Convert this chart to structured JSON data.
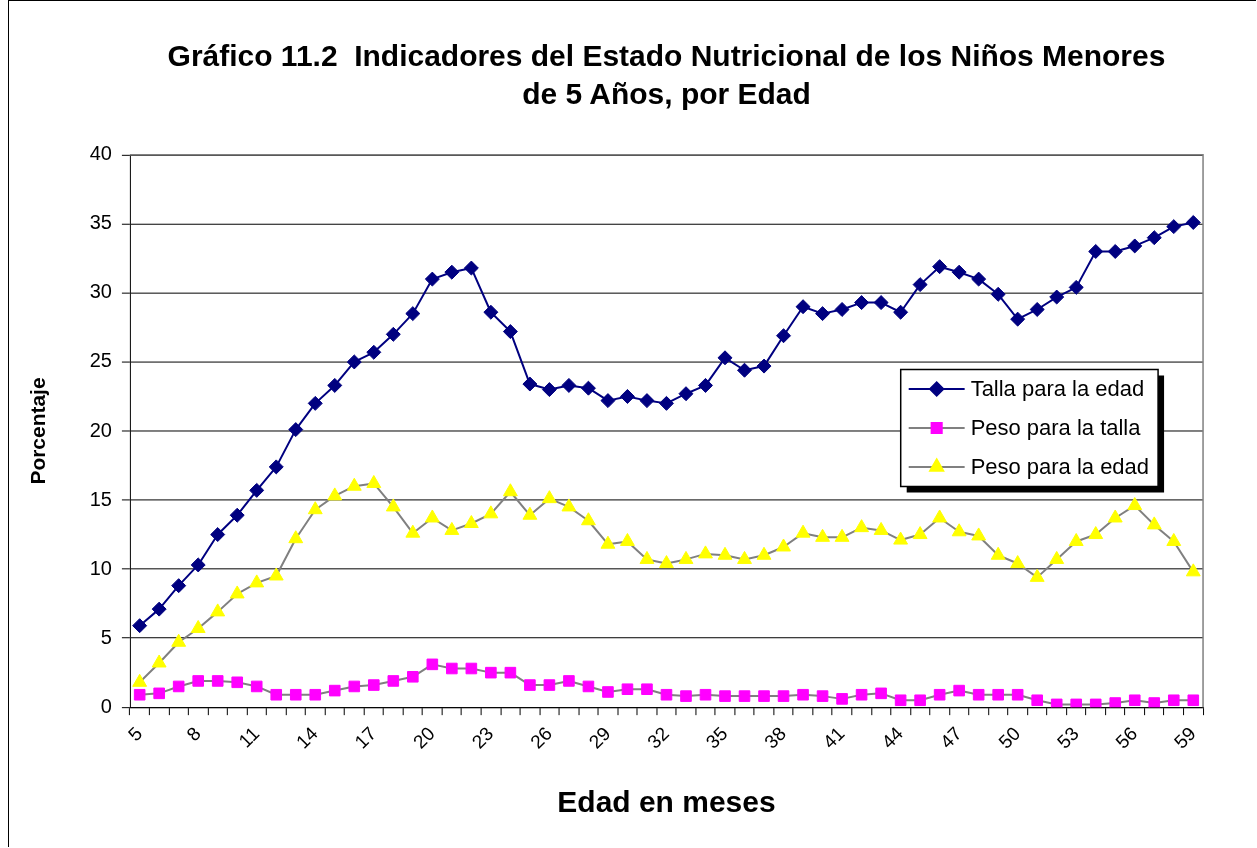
{
  "chart_data": {
    "type": "line",
    "title": "Gráfico 11.2  Indicadores del Estado Nutricional de los Niños Menores de 5 Años, por Edad",
    "xlabel": "Edad en meses",
    "ylabel": "Porcentaje",
    "categories": [
      "5",
      null,
      null,
      "8",
      null,
      null,
      "11",
      null,
      null,
      "14",
      null,
      null,
      "17",
      null,
      null,
      "20",
      null,
      null,
      "23",
      null,
      null,
      "26",
      null,
      null,
      "29",
      null,
      null,
      "32",
      null,
      null,
      "35",
      null,
      null,
      "38",
      null,
      null,
      "41",
      null,
      null,
      "44",
      null,
      null,
      "47",
      null,
      null,
      "50",
      null,
      null,
      "53",
      null,
      null,
      "56",
      null,
      null,
      "59"
    ],
    "series": [
      {
        "name": "Talla para la edad",
        "color": "#000080",
        "marker": "diamond",
        "values": [
          5.9,
          7.1,
          8.8,
          10.3,
          12.5,
          13.9,
          15.7,
          17.4,
          20.1,
          22.0,
          23.3,
          25.0,
          25.7,
          27.0,
          28.5,
          31.0,
          31.5,
          31.8,
          28.6,
          27.2,
          23.4,
          23.0,
          23.3,
          23.1,
          22.2,
          22.5,
          22.2,
          22.0,
          22.7,
          23.3,
          25.3,
          24.4,
          24.7,
          26.9,
          29.0,
          28.5,
          28.8,
          29.3,
          29.3,
          28.6,
          30.6,
          31.9,
          31.5,
          31.0,
          29.9,
          28.1,
          28.8,
          29.7,
          30.4,
          33.0,
          33.0,
          33.4,
          34.0,
          34.8,
          35.1
        ]
      },
      {
        "name": "Peso para la talla",
        "color": "#808080",
        "marker": "square",
        "colors": [
          "#ff00ff",
          "#ff00ff",
          "#ff00ff",
          "#ff00ff",
          "#ff00ff",
          "#ff00ff",
          "#ff00ff",
          "#ff00ff",
          "#ff00ff",
          "#ff00ff",
          "#ff00ff",
          "#ff00ff",
          "#ff00ff",
          "#ff00ff",
          "#ff00ff",
          "#ff00ff",
          "#ff00ff",
          "#ff00ff",
          "#ff00ff",
          "#ff00ff",
          "#ff00ff",
          "#ff00ff",
          "#ff00ff",
          "#ff00ff",
          "#ff00ff",
          "#ff00ff",
          "#ff00ff",
          "#ff00ff",
          "#ff00ff",
          "#ff00ff",
          "#ff00ff",
          "#ff00ff",
          "#ff00ff",
          "#ff00ff",
          "#ff00ff",
          "#ff00ff",
          "#ff00ff",
          "#ff00ff",
          "#ff00ff",
          "#ff00ff",
          "#ff00ff",
          "#ff00ff",
          "#ff00ff",
          "#ff00ff",
          "#ff00ff",
          "#ff00ff",
          "#ff00ff",
          "#ff00ff",
          "#ff00ff",
          "#ff00ff",
          "#ff00ff",
          "#ff00ff",
          "#ff00ff",
          "#ff00ff",
          "#ff00ff"
        ],
        "values": [
          0.9,
          1.0,
          1.5,
          1.9,
          1.9,
          1.8,
          1.5,
          0.9,
          0.9,
          0.9,
          1.2,
          1.5,
          1.6,
          1.9,
          2.2,
          3.1,
          2.8,
          2.8,
          2.5,
          2.5,
          1.6,
          1.6,
          1.9,
          1.5,
          1.1,
          1.3,
          1.3,
          0.9,
          0.8,
          0.9,
          0.8,
          0.8,
          0.8,
          0.8,
          0.9,
          0.8,
          0.6,
          0.9,
          1.0,
          0.5,
          0.5,
          0.9,
          1.2,
          0.9,
          0.9,
          0.9,
          0.5,
          0.2,
          0.2,
          0.2,
          0.3,
          0.5,
          0.3,
          0.5,
          0.5
        ]
      },
      {
        "name": "Peso para la edad",
        "color": "#808080",
        "marker": "triangle",
        "colors": [
          "#ffff00",
          "#ffff00",
          "#ffff00",
          "#ffff00",
          "#ffff00",
          "#ffff00",
          "#ffff00",
          "#ffff00",
          "#ffff00",
          "#ffff00",
          "#ffff00",
          "#ffff00",
          "#ffff00",
          "#ffff00",
          "#ffff00",
          "#ffff00",
          "#ffff00",
          "#ffff00",
          "#ffff00",
          "#ffff00",
          "#ffff00",
          "#ffff00",
          "#ffff00",
          "#ffff00",
          "#ffff00",
          "#ffff00",
          "#ffff00",
          "#ffff00",
          "#ffff00",
          "#ffff00",
          "#ffff00",
          "#ffff00",
          "#ffff00",
          "#ffff00",
          "#ffff00",
          "#ffff00",
          "#ffff00",
          "#ffff00",
          "#ffff00",
          "#ffff00",
          "#ffff00",
          "#ffff00",
          "#ffff00",
          "#ffff00",
          "#ffff00",
          "#ffff00",
          "#ffff00",
          "#ffff00",
          "#ffff00",
          "#ffff00",
          "#ffff00",
          "#ffff00",
          "#ffff00",
          "#ffff00",
          "#ffff00"
        ],
        "values": [
          1.8,
          3.2,
          4.7,
          5.7,
          6.9,
          8.2,
          9.0,
          9.5,
          12.2,
          14.3,
          15.3,
          16.0,
          16.2,
          14.5,
          12.6,
          13.7,
          12.8,
          13.3,
          14.0,
          15.6,
          13.9,
          15.1,
          14.5,
          13.5,
          11.8,
          12.0,
          10.7,
          10.4,
          10.7,
          11.1,
          11.0,
          10.7,
          11.0,
          11.6,
          12.6,
          12.3,
          12.3,
          13.0,
          12.8,
          12.1,
          12.5,
          13.7,
          12.7,
          12.4,
          11.0,
          10.4,
          9.4,
          10.7,
          12.0,
          12.5,
          13.7,
          14.6,
          13.2,
          12.0,
          9.8
        ]
      }
    ],
    "ylim": [
      0,
      40
    ],
    "yticks": [
      0,
      5,
      10,
      15,
      20,
      25,
      30,
      35,
      40
    ],
    "grid": "y",
    "legend": "right"
  }
}
